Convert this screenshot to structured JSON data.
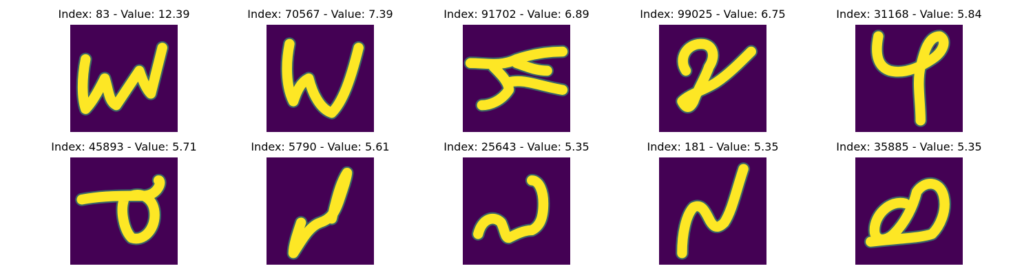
{
  "figure": {
    "panels": [
      {
        "title": "Index: 83 - Value: 12.39",
        "index": 83,
        "value": 12.39,
        "glyph": "w-shape"
      },
      {
        "title": "Index: 70567 - Value: 7.39",
        "index": 70567,
        "value": 7.39,
        "glyph": "w-loop-shape"
      },
      {
        "title": "Index: 91702 - Value: 6.89",
        "index": 91702,
        "value": 6.89,
        "glyph": "horizontal-scribble"
      },
      {
        "title": "Index: 99025 - Value: 6.75",
        "index": 99025,
        "value": 6.75,
        "glyph": "q-slash-shape"
      },
      {
        "title": "Index: 31168 - Value: 5.84",
        "index": 31168,
        "value": 5.84,
        "glyph": "four-shape"
      },
      {
        "title": "Index: 45893 - Value: 5.71",
        "index": 45893,
        "value": 5.71,
        "glyph": "loop-with-bar"
      },
      {
        "title": "Index: 5790 - Value: 5.61",
        "index": 5790,
        "value": 5.61,
        "glyph": "n-loop-shape"
      },
      {
        "title": "Index: 25643 - Value: 5.35",
        "index": 25643,
        "value": 5.35,
        "glyph": "wave-shape"
      },
      {
        "title": "Index: 181 - Value: 5.35",
        "index": 181,
        "value": 5.35,
        "glyph": "n-zigzag-shape"
      },
      {
        "title": "Index: 35885 - Value: 5.35",
        "index": 35885,
        "value": 5.35,
        "glyph": "a-loop-shape"
      }
    ]
  },
  "colors": {
    "background": "#440154",
    "stroke": "#fde725",
    "edge": "#35b779"
  }
}
